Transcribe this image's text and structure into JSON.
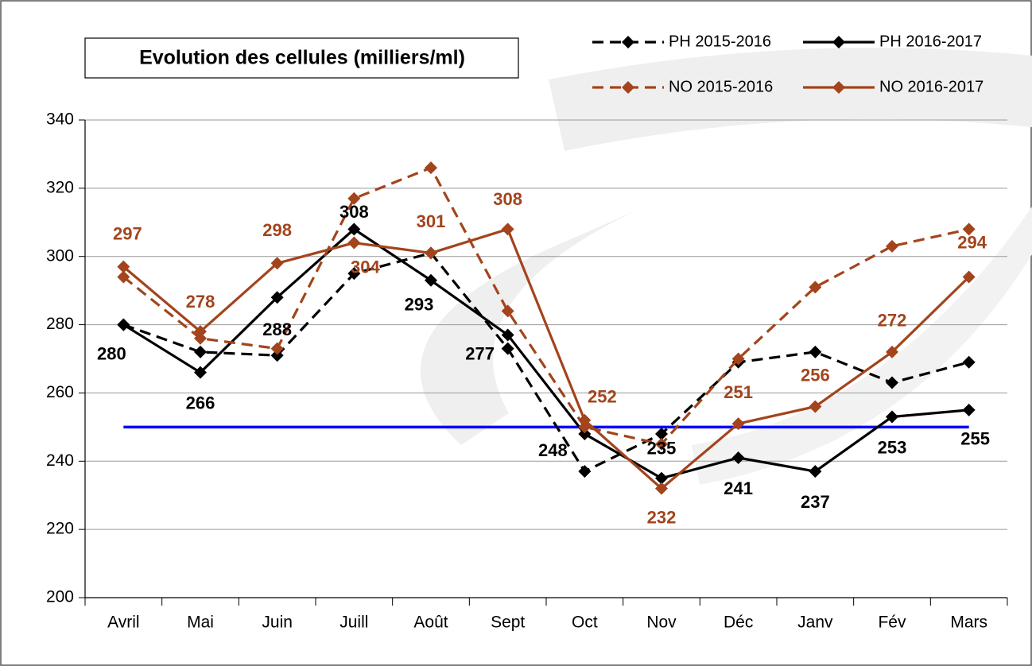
{
  "chart_data": {
    "type": "line",
    "title": "Evolution des cellules (milliers/ml)",
    "categories": [
      "Avril",
      "Mai",
      "Juin",
      "Juill",
      "Août",
      "Sept",
      "Oct",
      "Nov",
      "Déc",
      "Janv",
      "Fév",
      "Mars"
    ],
    "series": [
      {
        "name": "PH 2015-2016",
        "color": "#000000",
        "dashed": true,
        "values": [
          280,
          272,
          271,
          295,
          301,
          273,
          237,
          248,
          269,
          272,
          263,
          269
        ]
      },
      {
        "name": "PH 2016-2017",
        "color": "#000000",
        "dashed": false,
        "data_labels": true,
        "values": [
          280,
          266,
          288,
          308,
          293,
          277,
          248,
          235,
          241,
          237,
          253,
          255
        ]
      },
      {
        "name": "NO 2015-2016",
        "color": "#a3441c",
        "dashed": true,
        "values": [
          294,
          276,
          273,
          317,
          326,
          284,
          250,
          245,
          270,
          291,
          303,
          308
        ]
      },
      {
        "name": "NO 2016-2017",
        "color": "#a3441c",
        "dashed": false,
        "data_labels": true,
        "values": [
          297,
          278,
          298,
          304,
          301,
          308,
          252,
          232,
          251,
          256,
          272,
          294
        ]
      }
    ],
    "reference_line": {
      "value": 250,
      "color": "#0000ff"
    },
    "ylim": [
      200,
      340
    ],
    "yticks": [
      200,
      220,
      240,
      260,
      280,
      300,
      320,
      340
    ],
    "grid": true,
    "legend": "top-right"
  }
}
